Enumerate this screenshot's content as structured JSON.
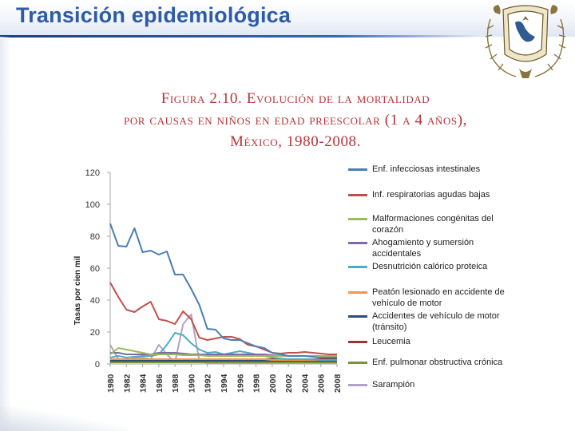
{
  "header": {
    "title": "Transición epidemiológica"
  },
  "figure": {
    "caption_lines": [
      "Figura 2.10. Evolución de la mortalidad",
      "por causas en niños en edad preescolar (1 a 4 años),",
      "México, 1980-2008."
    ]
  },
  "chart_data": {
    "type": "line",
    "title": "Figura 2.10. Evolución de la mortalidad por causas en niños en edad preescolar (1 a 4 años), México, 1980-2008.",
    "xlabel": "",
    "ylabel": "Tasas por cien mil",
    "ylim": [
      0,
      120
    ],
    "yticks": [
      "0",
      "20",
      "40",
      "60",
      "80",
      "100",
      "120"
    ],
    "grid": false,
    "legend": "right",
    "x": [
      "1980",
      "1981",
      "1982",
      "1983",
      "1984",
      "1985",
      "1986",
      "1987",
      "1988",
      "1989",
      "1990",
      "1991",
      "1992",
      "1993",
      "1994",
      "1995",
      "1996",
      "1997",
      "1998",
      "1999",
      "2000",
      "2001",
      "2002",
      "2003",
      "2004",
      "2005",
      "2006",
      "2007",
      "2008"
    ],
    "xtick_labels": [
      "1980",
      "1982",
      "1984",
      "1986",
      "1988",
      "1990",
      "1992",
      "1994",
      "1996",
      "1998",
      "2000",
      "2002",
      "2004",
      "2006",
      "2008"
    ],
    "series": [
      {
        "name": "Enf. infecciosas intestinales",
        "color": "#4a7eb5",
        "values": [
          88,
          74,
          73.5,
          85,
          70,
          71,
          68.5,
          70.5,
          56,
          56,
          47,
          37,
          22,
          21.5,
          16,
          15,
          15,
          13,
          11,
          10,
          7,
          6,
          5,
          5,
          5,
          4.5,
          4,
          4,
          4
        ]
      },
      {
        "name": "Inf. respiratorias agudas bajas",
        "color": "#c0504d",
        "values": [
          51,
          42,
          34,
          32.5,
          36,
          39,
          28,
          27,
          25,
          33,
          28,
          16.5,
          15,
          16,
          17,
          17,
          15.5,
          12,
          11,
          9,
          7,
          6.5,
          7,
          7,
          7.5,
          7,
          6.5,
          6,
          6
        ]
      },
      {
        "name": "Malformaciones congénitas del corazón",
        "color": "#9bbb59",
        "values": [
          6,
          10,
          9,
          8,
          7,
          6,
          6,
          6,
          6,
          5.5,
          5.5,
          5.5,
          5,
          5,
          5,
          5,
          5,
          5,
          5,
          5,
          5,
          5,
          5,
          5,
          5,
          5,
          5,
          5,
          5
        ]
      },
      {
        "name": "Ahogamiento y sumersión accidentales",
        "color": "#7f6aa8",
        "values": [
          7,
          7,
          6,
          6,
          6,
          6,
          7,
          7,
          7,
          6.5,
          6,
          6,
          6,
          6,
          6,
          6,
          6,
          6,
          6,
          6,
          5.5,
          5,
          5,
          5,
          5,
          5,
          5,
          4.5,
          4.5
        ]
      },
      {
        "name": "Desnutrición calórico proteica",
        "color": "#4bacc6",
        "values": [
          4,
          5,
          4,
          4.5,
          5,
          5,
          6,
          12,
          19.5,
          18,
          13,
          9,
          7,
          7.5,
          6,
          7,
          8,
          7,
          6,
          5,
          4,
          3.5,
          3,
          3,
          3,
          3,
          2.5,
          2.5,
          2.5
        ]
      },
      {
        "name": "Peatón lesionado en accidente de vehículo de motor",
        "color": "#f79646",
        "values": [
          3,
          3,
          3,
          3,
          3,
          3,
          3,
          3,
          3,
          3,
          3,
          3,
          3,
          3,
          3,
          3,
          3,
          3,
          3,
          3,
          2.5,
          2.5,
          2.5,
          2.5,
          2.5,
          2.5,
          2.5,
          2.5,
          2.5
        ]
      },
      {
        "name": "Accidentes de vehículo de motor (tránsito)",
        "color": "#2c4d75",
        "values": [
          2,
          2,
          2,
          2,
          2,
          2,
          2,
          2,
          2,
          2,
          2,
          2,
          2,
          2,
          2,
          2,
          2,
          2,
          2,
          2,
          2,
          2,
          2,
          2,
          2,
          2,
          2,
          2,
          2
        ]
      },
      {
        "name": "Leucemia",
        "color": "#953735",
        "values": [
          3,
          3,
          3,
          3,
          3,
          3,
          3,
          3,
          3,
          3,
          3,
          3,
          3,
          3,
          3,
          3,
          3,
          3,
          3,
          3,
          3,
          3,
          3,
          3,
          3,
          3,
          3,
          3,
          3
        ]
      },
      {
        "name": "Enf. pulmonar obstructiva crónica",
        "color": "#77933c",
        "values": [
          1,
          1,
          1,
          1,
          1,
          1,
          1,
          1,
          1,
          1,
          1,
          1,
          1,
          1,
          1,
          1,
          1,
          1,
          1,
          1,
          1,
          1,
          1,
          1,
          1,
          1,
          1,
          1,
          1
        ]
      },
      {
        "name": "Sarampión",
        "color": "#b3a2c7",
        "values": [
          12,
          3,
          2,
          4,
          4,
          3,
          12,
          6,
          1,
          25,
          31,
          2,
          0.5,
          0.5,
          0.5,
          0.5,
          0.5,
          0.5,
          0.5,
          0.5,
          0.5,
          0.5,
          0.5,
          0.5,
          0.5,
          0.5,
          0.5,
          0.5,
          0.5
        ]
      }
    ]
  }
}
